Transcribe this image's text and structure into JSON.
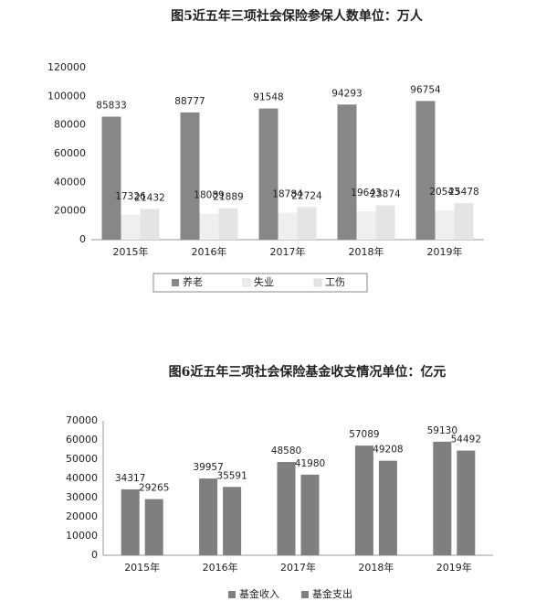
{
  "chart_data": [
    {
      "type": "bar",
      "title": "图5近五年三项社会保险参保人数单位：万人",
      "categories": [
        "2015年",
        "2016年",
        "2017年",
        "2018年",
        "2019年"
      ],
      "series": [
        {
          "name": "养老",
          "color": "#878787",
          "values": [
            85833,
            88777,
            91548,
            94293,
            96754
          ]
        },
        {
          "name": "失业",
          "color": "#efefef",
          "values": [
            17326,
            18089,
            18784,
            19643,
            20543
          ]
        },
        {
          "name": "工伤",
          "color": "#e4e4e4",
          "values": [
            21432,
            21889,
            22724,
            23874,
            25478
          ]
        }
      ],
      "ylim": [
        0,
        120000
      ],
      "yticks": [
        0,
        20000,
        40000,
        60000,
        80000,
        100000,
        120000
      ],
      "grid": false,
      "legend": "bottom"
    },
    {
      "type": "bar",
      "title": "图6近五年三项社会保险基金收支情况单位：亿元",
      "categories": [
        "2015年",
        "2016年",
        "2017年",
        "2018年",
        "2019年"
      ],
      "series": [
        {
          "name": "基金收入",
          "color": "#7f7f7f",
          "values": [
            34317,
            39957,
            48580,
            57089,
            59130
          ]
        },
        {
          "name": "基金支出",
          "color": "#7f7f7f",
          "values": [
            29265,
            35591,
            41980,
            49208,
            54492
          ]
        }
      ],
      "ylim": [
        0,
        70000
      ],
      "yticks": [
        0,
        10000,
        20000,
        30000,
        40000,
        50000,
        60000,
        70000
      ],
      "grid": false,
      "legend": "bottom"
    }
  ]
}
